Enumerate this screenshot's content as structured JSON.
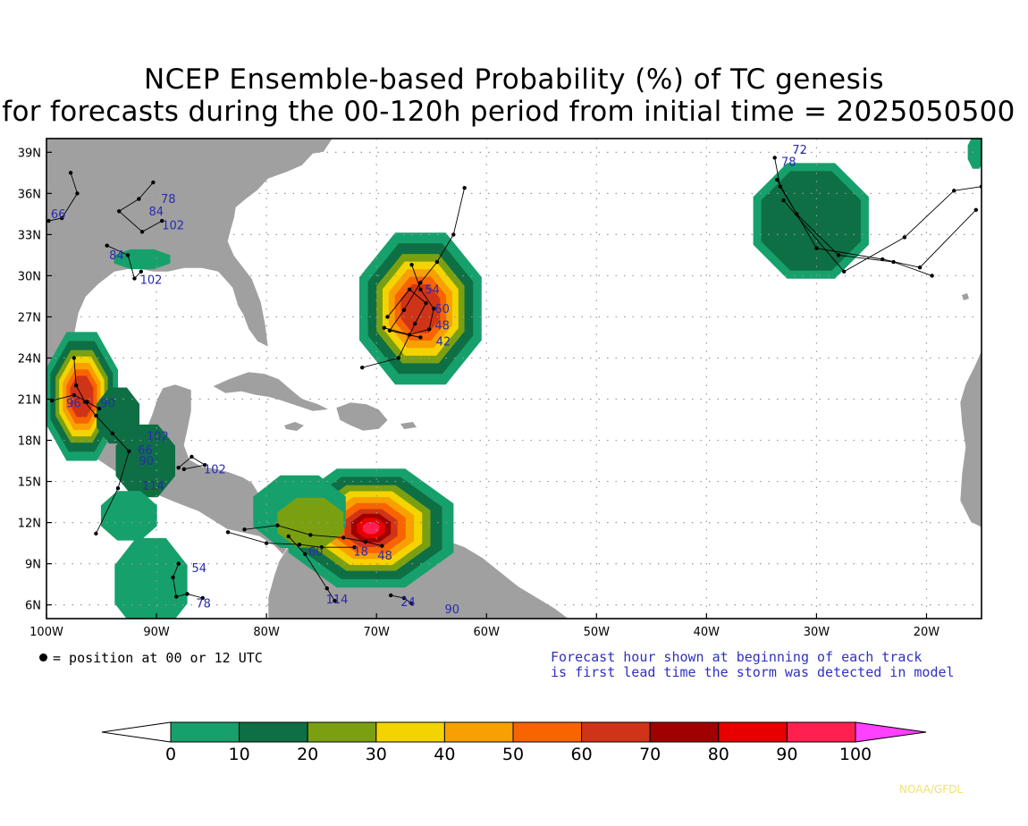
{
  "title": {
    "line1": "NCEP Ensemble-based Probability (%) of TC genesis",
    "line2": "for forecasts during the 00-120h period from initial time = 2025050500"
  },
  "map": {
    "lon_range": [
      -100,
      -15
    ],
    "lat_range": [
      5,
      40
    ],
    "lon_ticks": [
      {
        "value": -100,
        "label": "100W"
      },
      {
        "value": -90,
        "label": "90W"
      },
      {
        "value": -80,
        "label": "80W"
      },
      {
        "value": -70,
        "label": "70W"
      },
      {
        "value": -60,
        "label": "60W"
      },
      {
        "value": -50,
        "label": "50W"
      },
      {
        "value": -40,
        "label": "40W"
      },
      {
        "value": -30,
        "label": "30W"
      },
      {
        "value": -20,
        "label": "20W"
      }
    ],
    "lat_ticks": [
      {
        "value": 6,
        "label": "6N"
      },
      {
        "value": 9,
        "label": "9N"
      },
      {
        "value": 12,
        "label": "12N"
      },
      {
        "value": 15,
        "label": "15N"
      },
      {
        "value": 18,
        "label": "18N"
      },
      {
        "value": 21,
        "label": "21N"
      },
      {
        "value": 24,
        "label": "24N"
      },
      {
        "value": 27,
        "label": "27N"
      },
      {
        "value": 30,
        "label": "30N"
      },
      {
        "value": 33,
        "label": "33N"
      },
      {
        "value": 36,
        "label": "36N"
      },
      {
        "value": 39,
        "label": "39N"
      }
    ],
    "land_color": "#a0a0a0",
    "ocean_color": "#ffffff",
    "border_color": "#ffffff",
    "gridlines": "dotted",
    "probability_areas": [
      {
        "region": "western Atlantic",
        "center": [
          -66,
          27.6
        ],
        "peak_prob": 60
      },
      {
        "region": "southern Caribbean",
        "center": [
          -70.5,
          11.6
        ],
        "peak_prob": 100
      },
      {
        "region": "western Gulf of Mexico",
        "center": [
          -96.8,
          21.2
        ],
        "peak_prob": 60
      },
      {
        "region": "eastern Atlantic",
        "center": [
          -30.5,
          34
        ],
        "peak_prob": 10
      }
    ],
    "track_labels": [
      {
        "text": "66",
        "lon": -99.6,
        "lat": 34.2
      },
      {
        "text": "84",
        "lon": -90.7,
        "lat": 34.4
      },
      {
        "text": "78",
        "lon": -89.6,
        "lat": 35.3
      },
      {
        "text": "102",
        "lon": -89.5,
        "lat": 33.4
      },
      {
        "text": "84",
        "lon": -94.3,
        "lat": 31.2
      },
      {
        "text": "102",
        "lon": -91.5,
        "lat": 29.4
      },
      {
        "text": "72",
        "lon": -32.2,
        "lat": 38.9
      },
      {
        "text": "78",
        "lon": -33.2,
        "lat": 38.0
      },
      {
        "text": "54",
        "lon": -65.6,
        "lat": 28.7
      },
      {
        "text": "60",
        "lon": -64.7,
        "lat": 27.3
      },
      {
        "text": "48",
        "lon": -64.7,
        "lat": 26.1
      },
      {
        "text": "42",
        "lon": -64.6,
        "lat": 24.9
      },
      {
        "text": "96",
        "lon": -98.2,
        "lat": 20.4
      },
      {
        "text": "90",
        "lon": -95.1,
        "lat": 20.4
      },
      {
        "text": "102",
        "lon": -90.9,
        "lat": 18.0
      },
      {
        "text": "66",
        "lon": -91.7,
        "lat": 17.0
      },
      {
        "text": "90",
        "lon": -91.6,
        "lat": 16.2
      },
      {
        "text": "114",
        "lon": -91.3,
        "lat": 14.4
      },
      {
        "text": "102",
        "lon": -85.7,
        "lat": 15.6
      },
      {
        "text": "60",
        "lon": -76.2,
        "lat": 9.6
      },
      {
        "text": "18",
        "lon": -72.1,
        "lat": 9.6
      },
      {
        "text": "48",
        "lon": -69.9,
        "lat": 9.3
      },
      {
        "text": "54",
        "lon": -86.8,
        "lat": 8.4
      },
      {
        "text": "78",
        "lon": -86.4,
        "lat": 5.8
      },
      {
        "text": "114",
        "lon": -74.6,
        "lat": 6.1
      },
      {
        "text": "24",
        "lon": -67.8,
        "lat": 5.9
      },
      {
        "text": "90",
        "lon": -63.8,
        "lat": 5.4
      }
    ]
  },
  "legend": {
    "position_text": "= position at 00 or 12 UTC",
    "note_line1": "Forecast hour shown at beginning of each track",
    "note_line2": "is first lead time the storm was detected in model",
    "credit": "NOAA/GFDL"
  },
  "colorbar": {
    "labels": [
      "0",
      "10",
      "20",
      "30",
      "40",
      "50",
      "60",
      "70",
      "80",
      "90",
      "100"
    ],
    "colors": [
      "#16a06c",
      "#0e6f44",
      "#7aa012",
      "#f4d400",
      "#f8a000",
      "#f86400",
      "#d03418",
      "#a00000",
      "#e80000",
      "#ff2050"
    ],
    "under_color": "#ffffff",
    "over_color": "#ff40ff"
  }
}
